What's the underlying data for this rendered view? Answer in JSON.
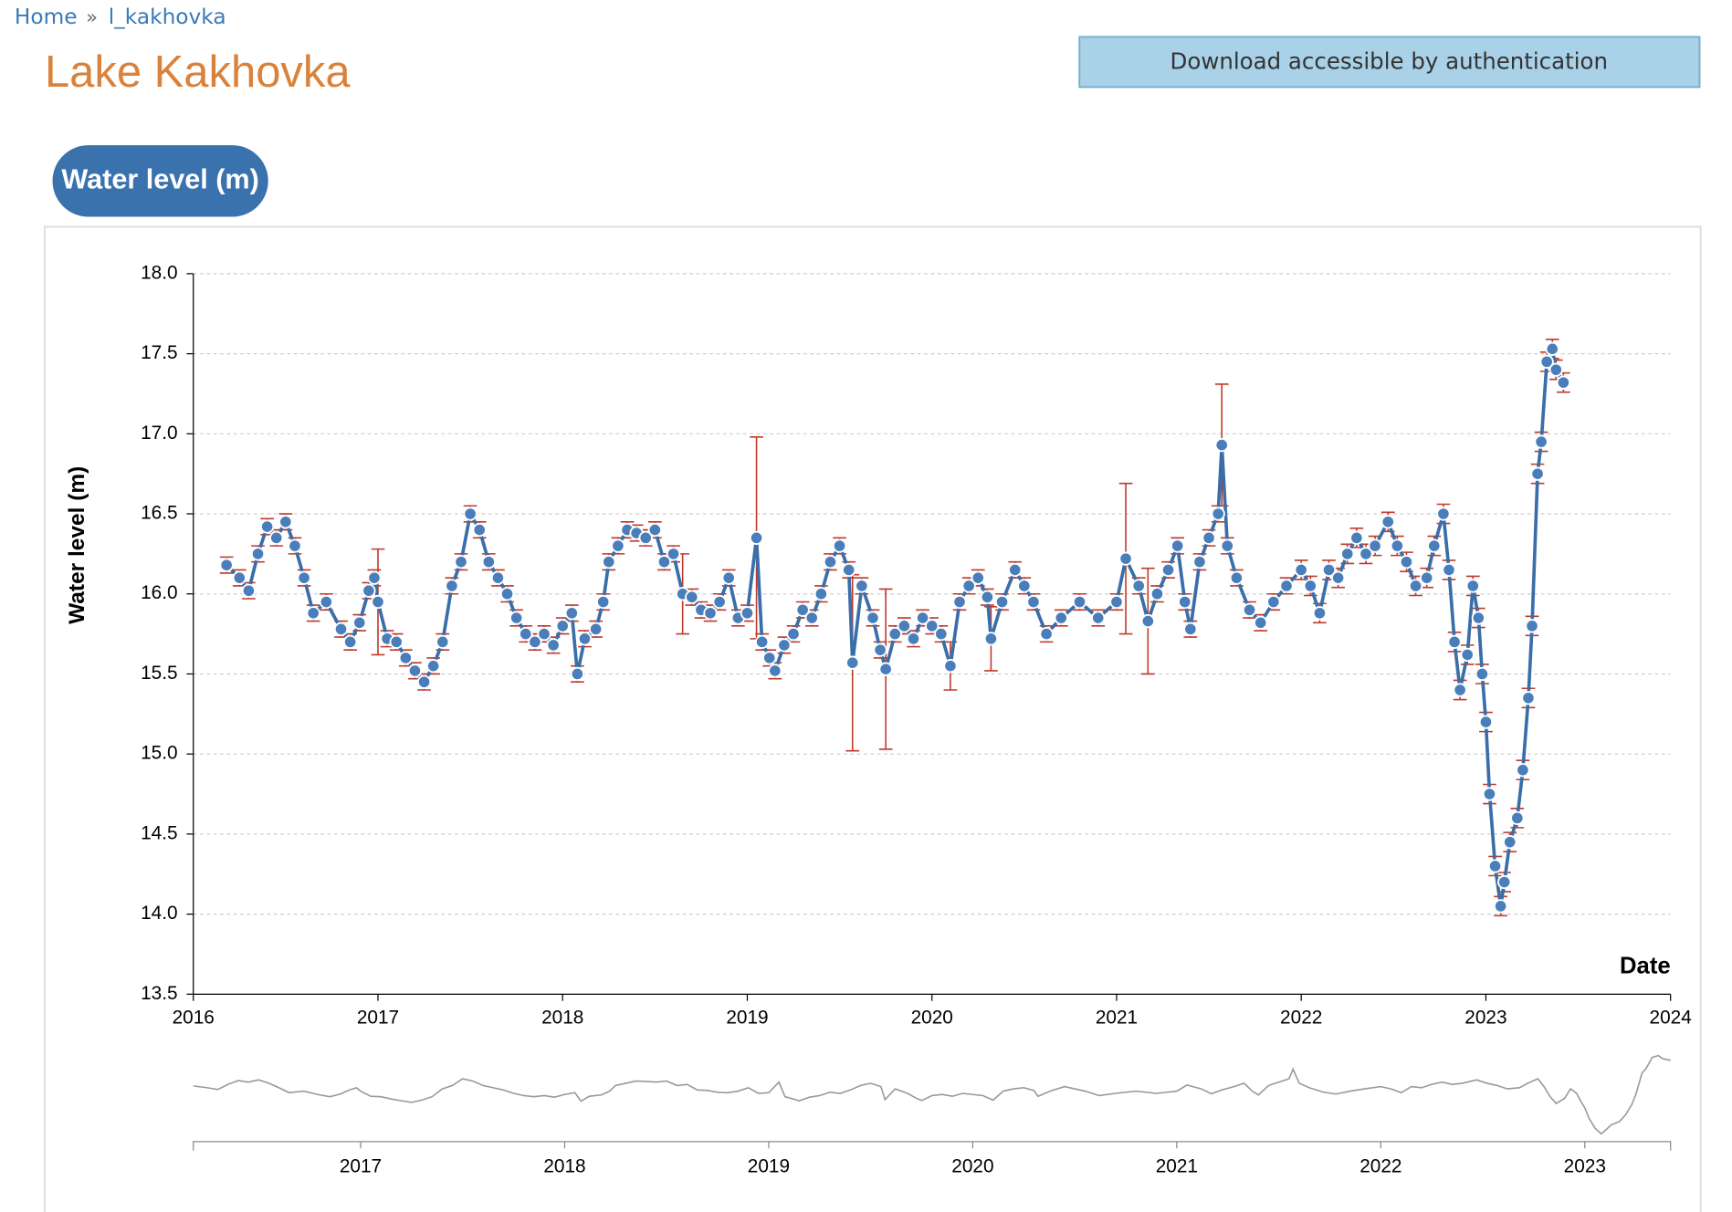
{
  "breadcrumb": {
    "items": [
      "Home",
      "l_kakhovka"
    ],
    "separator": "»"
  },
  "title": "Lake Kakhovka",
  "download_button": "Download accessible by authentication",
  "tab": "Water level (m)",
  "chart_data": {
    "type": "line",
    "ylabel": "Water level (m)",
    "xlabel": "Date",
    "line_color": "#3a6ea8",
    "marker_color": "#4a7ebb",
    "error_color": "#c0392b",
    "grid": true,
    "xlim": [
      2016,
      2024
    ],
    "xticks": [
      2016,
      2017,
      2018,
      2019,
      2020,
      2021,
      2022,
      2023,
      2024
    ],
    "ylim": [
      13.5,
      18.0
    ],
    "yticks": [
      {
        "value": 13.5,
        "label": "13.5"
      },
      {
        "value": 14,
        "label": "14.0"
      },
      {
        "value": 14.5,
        "label": "14.5"
      },
      {
        "value": 15,
        "label": "15.0"
      },
      {
        "value": 15.5,
        "label": "15.5"
      },
      {
        "value": 16,
        "label": "16.0"
      },
      {
        "value": 16.5,
        "label": "16.5"
      },
      {
        "value": 17,
        "label": "17.0"
      },
      {
        "value": 17.5,
        "label": "17.5"
      },
      {
        "value": 18,
        "label": "18.0"
      }
    ],
    "x": [
      2016.18,
      2016.25,
      2016.3,
      2016.35,
      2016.4,
      2016.45,
      2016.5,
      2016.55,
      2016.6,
      2016.65,
      2016.72,
      2016.8,
      2016.85,
      2016.9,
      2016.95,
      2016.98,
      2017.0,
      2017.05,
      2017.1,
      2017.15,
      2017.2,
      2017.25,
      2017.3,
      2017.35,
      2017.4,
      2017.45,
      2017.5,
      2017.55,
      2017.6,
      2017.65,
      2017.7,
      2017.75,
      2017.8,
      2017.85,
      2017.9,
      2017.95,
      2018.0,
      2018.05,
      2018.08,
      2018.12,
      2018.18,
      2018.22,
      2018.25,
      2018.3,
      2018.35,
      2018.4,
      2018.45,
      2018.5,
      2018.55,
      2018.6,
      2018.65,
      2018.7,
      2018.75,
      2018.8,
      2018.85,
      2018.9,
      2018.95,
      2019.0,
      2019.05,
      2019.08,
      2019.12,
      2019.15,
      2019.2,
      2019.25,
      2019.3,
      2019.35,
      2019.4,
      2019.45,
      2019.5,
      2019.55,
      2019.57,
      2019.62,
      2019.68,
      2019.72,
      2019.75,
      2019.8,
      2019.85,
      2019.9,
      2019.95,
      2020.0,
      2020.05,
      2020.1,
      2020.15,
      2020.2,
      2020.25,
      2020.3,
      2020.32,
      2020.38,
      2020.45,
      2020.5,
      2020.55,
      2020.62,
      2020.7,
      2020.8,
      2020.9,
      2021.0,
      2021.05,
      2021.12,
      2021.17,
      2021.22,
      2021.28,
      2021.33,
      2021.37,
      2021.4,
      2021.45,
      2021.5,
      2021.55,
      2021.57,
      2021.6,
      2021.65,
      2021.72,
      2021.78,
      2021.85,
      2021.92,
      2022.0,
      2022.05,
      2022.1,
      2022.15,
      2022.2,
      2022.25,
      2022.3,
      2022.35,
      2022.4,
      2022.47,
      2022.52,
      2022.57,
      2022.62,
      2022.68,
      2022.72,
      2022.77,
      2022.8,
      2022.83,
      2022.86,
      2022.9,
      2022.93,
      2022.96,
      2022.98,
      2023.0,
      2023.02,
      2023.05,
      2023.08,
      2023.1,
      2023.13,
      2023.17,
      2023.2,
      2023.23,
      2023.25,
      2023.28,
      2023.3,
      2023.33,
      2023.36,
      2023.38,
      2023.42
    ],
    "values": [
      16.18,
      16.1,
      16.02,
      16.25,
      16.42,
      16.35,
      16.45,
      16.3,
      16.1,
      15.88,
      15.95,
      15.78,
      15.7,
      15.82,
      16.02,
      16.1,
      15.95,
      15.72,
      15.7,
      15.6,
      15.52,
      15.45,
      15.55,
      15.7,
      16.05,
      16.2,
      16.5,
      16.4,
      16.2,
      16.1,
      16.0,
      15.85,
      15.75,
      15.7,
      15.75,
      15.68,
      15.8,
      15.88,
      15.5,
      15.72,
      15.78,
      15.95,
      16.2,
      16.3,
      16.4,
      16.38,
      16.35,
      16.4,
      16.2,
      16.25,
      16.0,
      15.98,
      15.9,
      15.88,
      15.95,
      16.1,
      15.85,
      15.88,
      16.35,
      15.7,
      15.6,
      15.52,
      15.68,
      15.75,
      15.9,
      15.85,
      16.0,
      16.2,
      16.3,
      16.15,
      15.57,
      16.05,
      15.85,
      15.65,
      15.53,
      15.75,
      15.8,
      15.72,
      15.85,
      15.8,
      15.75,
      15.55,
      15.95,
      16.05,
      16.1,
      15.98,
      15.72,
      15.95,
      16.15,
      16.05,
      15.95,
      15.75,
      15.85,
      15.95,
      15.85,
      15.95,
      16.22,
      16.05,
      15.83,
      16.0,
      16.15,
      16.3,
      15.95,
      15.78,
      16.2,
      16.35,
      16.5,
      16.93,
      16.3,
      16.1,
      15.9,
      15.82,
      15.95,
      16.05,
      16.15,
      16.05,
      15.88,
      16.15,
      16.1,
      16.25,
      16.35,
      16.25,
      16.3,
      16.45,
      16.3,
      16.2,
      16.05,
      16.1,
      16.3,
      16.5,
      16.15,
      15.7,
      15.4,
      15.62,
      16.05,
      15.85,
      15.5,
      15.2,
      14.75,
      14.3,
      14.05,
      14.2,
      14.45,
      14.6,
      14.9,
      15.35,
      15.8,
      16.75,
      16.95,
      17.45,
      17.53,
      17.4,
      17.32
    ],
    "errors": [
      0.05,
      0.05,
      0.05,
      0.05,
      0.05,
      0.05,
      0.05,
      0.05,
      0.05,
      0.05,
      0.05,
      0.05,
      0.05,
      0.05,
      0.05,
      0.05,
      0.33,
      0.05,
      0.05,
      0.05,
      0.05,
      0.05,
      0.05,
      0.05,
      0.05,
      0.05,
      0.05,
      0.05,
      0.05,
      0.05,
      0.05,
      0.05,
      0.05,
      0.05,
      0.05,
      0.05,
      0.05,
      0.05,
      0.05,
      0.05,
      0.05,
      0.05,
      0.05,
      0.05,
      0.05,
      0.05,
      0.05,
      0.05,
      0.05,
      0.05,
      0.25,
      0.05,
      0.05,
      0.05,
      0.05,
      0.05,
      0.05,
      0.05,
      0.63,
      0.05,
      0.05,
      0.05,
      0.05,
      0.05,
      0.05,
      0.05,
      0.05,
      0.05,
      0.05,
      0.05,
      0.55,
      0.05,
      0.05,
      0.05,
      0.5,
      0.05,
      0.05,
      0.05,
      0.05,
      0.05,
      0.05,
      0.15,
      0.05,
      0.05,
      0.05,
      0.05,
      0.2,
      0.05,
      0.05,
      0.05,
      0.05,
      0.05,
      0.05,
      0.05,
      0.05,
      0.05,
      0.47,
      0.05,
      0.33,
      0.05,
      0.05,
      0.05,
      0.05,
      0.05,
      0.05,
      0.05,
      0.05,
      0.38,
      0.05,
      0.05,
      0.05,
      0.05,
      0.05,
      0.05,
      0.06,
      0.06,
      0.06,
      0.06,
      0.06,
      0.06,
      0.06,
      0.06,
      0.06,
      0.06,
      0.06,
      0.06,
      0.06,
      0.06,
      0.06,
      0.06,
      0.06,
      0.06,
      0.06,
      0.06,
      0.06,
      0.06,
      0.06,
      0.06,
      0.06,
      0.06,
      0.06,
      0.06,
      0.06,
      0.06,
      0.06,
      0.06,
      0.06,
      0.06,
      0.06,
      0.06,
      0.06,
      0.06,
      0.06
    ],
    "navigator": {
      "color": "#999999",
      "xlim": [
        2016.18,
        2023.42
      ],
      "xticks": [
        2017,
        2018,
        2019,
        2020,
        2021,
        2022,
        2023
      ]
    }
  }
}
